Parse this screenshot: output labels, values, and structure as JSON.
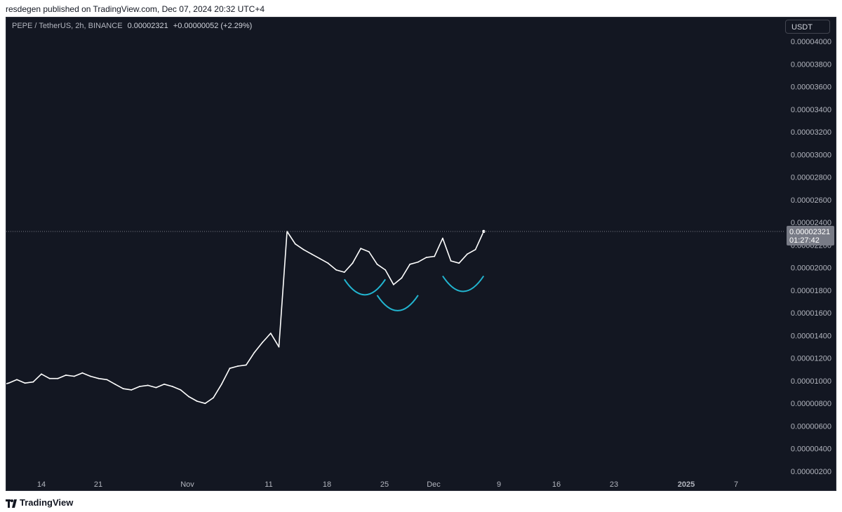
{
  "header": {
    "published": "resdegen published on TradingView.com, Dec 07, 2024 20:32 UTC+4"
  },
  "legend": {
    "symbol": "PEPE / TetherUS, 2h, BINANCE",
    "price": "0.00002321",
    "change": "+0.00000052 (+2.29%)"
  },
  "currency_button": "USDT",
  "price_label": {
    "price": "0.00002321",
    "countdown": "01:27:42"
  },
  "footer": {
    "brand": "TradingView"
  },
  "colors": {
    "background": "#131722",
    "line": "#ffffff",
    "arcs": "#22b5d0",
    "axis_text": "#b2b5be",
    "price_tag": "#787b86"
  },
  "chart_data": {
    "type": "line",
    "x_ticks": [
      "14",
      "21",
      "Nov",
      "11",
      "18",
      "25",
      "Dec",
      "9",
      "16",
      "23",
      "2025",
      "7"
    ],
    "y_ticks": [
      "0.00004000",
      "0.00003800",
      "0.00003600",
      "0.00003400",
      "0.00003200",
      "0.00003000",
      "0.00002800",
      "0.00002600",
      "0.00002400",
      "0.00002200",
      "0.00002000",
      "0.00001800",
      "0.00001600",
      "0.00001400",
      "0.00001200",
      "0.00001000",
      "0.00000800",
      "0.00000600",
      "0.00000400",
      "0.00000200"
    ],
    "ylim": [
      1.4e-06,
      4.2e-06
    ],
    "series": [
      {
        "x": [
          "2024-10-08",
          "2024-10-09",
          "2024-10-10",
          "2024-10-11",
          "2024-10-12",
          "2024-10-13",
          "2024-10-14",
          "2024-10-15",
          "2024-10-16",
          "2024-10-17",
          "2024-10-18",
          "2024-10-19",
          "2024-10-20",
          "2024-10-21",
          "2024-10-22",
          "2024-10-23",
          "2024-10-24",
          "2024-10-25",
          "2024-10-26",
          "2024-10-27",
          "2024-10-28",
          "2024-10-29",
          "2024-10-30",
          "2024-10-31",
          "2024-11-01",
          "2024-11-02",
          "2024-11-03",
          "2024-11-04",
          "2024-11-05",
          "2024-11-06",
          "2024-11-07",
          "2024-11-08",
          "2024-11-09",
          "2024-11-10",
          "2024-11-11",
          "2024-11-12",
          "2024-11-13",
          "2024-11-14",
          "2024-11-15",
          "2024-11-16",
          "2024-11-17",
          "2024-11-18",
          "2024-11-19",
          "2024-11-20",
          "2024-11-21",
          "2024-11-22",
          "2024-11-23",
          "2024-11-24",
          "2024-11-25",
          "2024-11-26",
          "2024-11-27",
          "2024-11-28",
          "2024-11-29",
          "2024-11-30",
          "2024-12-01",
          "2024-12-02",
          "2024-12-03",
          "2024-12-04",
          "2024-12-05",
          "2024-12-06",
          "2024-12-07"
        ],
        "y": [
          9.3e-06,
          9.6e-06,
          9.8e-06,
          1.01e-05,
          9.8e-06,
          9.9e-06,
          1.06e-05,
          1.02e-05,
          1.02e-05,
          1.05e-05,
          1.04e-05,
          1.07e-05,
          1.04e-05,
          1.02e-05,
          1.01e-05,
          9.7e-06,
          9.3e-06,
          9.2e-06,
          9.5e-06,
          9.6e-06,
          9.4e-06,
          9.7e-06,
          9.5e-06,
          9.2e-06,
          8.6e-06,
          8.2e-06,
          8e-06,
          8.5e-06,
          9.7e-06,
          1.11e-05,
          1.13e-05,
          1.14e-05,
          1.25e-05,
          1.34e-05,
          1.42e-05,
          1.3e-05,
          2.32e-05,
          2.21e-05,
          2.16e-05,
          2.12e-05,
          2.08e-05,
          2.04e-05,
          1.98e-05,
          1.96e-05,
          2.04e-05,
          2.17e-05,
          2.14e-05,
          2.03e-05,
          1.98e-05,
          1.85e-05,
          1.91e-05,
          2.03e-05,
          2.05e-05,
          2.09e-05,
          2.1e-05,
          2.26e-05,
          2.06e-05,
          2.04e-05,
          2.12e-05,
          2.16e-05,
          2.32e-05
        ]
      }
    ],
    "annotations": [
      {
        "type": "arc",
        "x_start": "2024-11-20",
        "x_end": "2024-11-25",
        "y_bottom": 1.76e-05
      },
      {
        "type": "arc",
        "x_start": "2024-11-24",
        "x_end": "2024-11-29",
        "y_bottom": 1.62e-05
      },
      {
        "type": "arc",
        "x_start": "2024-12-02",
        "x_end": "2024-12-07",
        "y_bottom": 1.79e-05
      }
    ]
  }
}
